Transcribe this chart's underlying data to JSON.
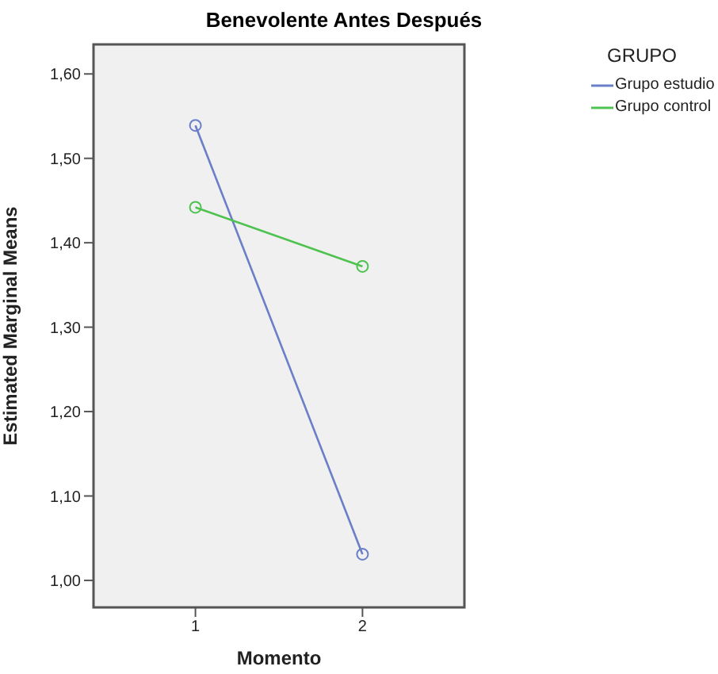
{
  "chart_data": {
    "type": "line",
    "title": "Benevolente Antes Después",
    "xlabel": "Momento",
    "ylabel": "Estimated Marginal Means",
    "legend_title": "GRUPO",
    "x": [
      1,
      2
    ],
    "series": [
      {
        "name": "Grupo estudio",
        "color": "#6a7fc8",
        "values": [
          1.539,
          1.031
        ]
      },
      {
        "name": "Grupo control",
        "color": "#4ec24e",
        "values": [
          1.442,
          1.372
        ]
      }
    ],
    "xlim": [
      0.39,
      2.61
    ],
    "xticks": [
      1,
      2
    ],
    "ylim": [
      0.968,
      1.635
    ],
    "yticks": [
      {
        "value": 1.0,
        "label": "1,00"
      },
      {
        "value": 1.1,
        "label": "1,10"
      },
      {
        "value": 1.2,
        "label": "1,20"
      },
      {
        "value": 1.3,
        "label": "1,30"
      },
      {
        "value": 1.4,
        "label": "1,40"
      },
      {
        "value": 1.5,
        "label": "1,50"
      },
      {
        "value": 1.6,
        "label": "1,60"
      }
    ],
    "legend": "top right",
    "marker": "circle",
    "line_style": "solid"
  }
}
